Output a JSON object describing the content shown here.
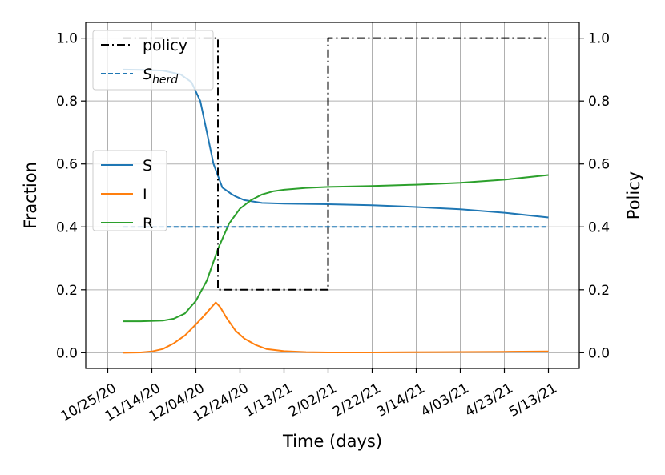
{
  "chart_data": {
    "type": "line",
    "xlabel": "Time (days)",
    "ylabel": "Fraction",
    "y2label": "Policy",
    "ylim": [
      -0.05,
      1.05
    ],
    "y2lim": [
      -0.05,
      1.05
    ],
    "xlim_days": [
      -10,
      214
    ],
    "grid": true,
    "x_ticks": [
      "10/25/20",
      "11/14/20",
      "12/04/20",
      "12/24/20",
      "1/13/21",
      "2/02/21",
      "2/22/21",
      "3/14/21",
      "4/03/21",
      "4/23/21",
      "5/13/21"
    ],
    "y_ticks": [
      "0.0",
      "0.2",
      "0.4",
      "0.6",
      "0.8",
      "1.0"
    ],
    "y2_ticks": [
      "0.0",
      "0.2",
      "0.4",
      "0.6",
      "0.8",
      "1.0"
    ],
    "x_start_date": "10/25/20",
    "legend_top": {
      "placement": "top-left",
      "entries": [
        {
          "label": "policy",
          "style": "dashdot",
          "color": "#000000"
        },
        {
          "label": "S",
          "subscript": "herd",
          "style": "dashed",
          "color": "#1f77b4"
        }
      ]
    },
    "legend_mid": {
      "placement": "center-left",
      "entries": [
        {
          "label": "S",
          "color": "#1f77b4"
        },
        {
          "label": "I",
          "color": "#ff7f0e"
        },
        {
          "label": "R",
          "color": "#2ca02c"
        }
      ]
    },
    "series": [
      {
        "name": "S",
        "color": "#1f77b4",
        "style": "solid",
        "x": [
          7,
          15,
          25,
          33,
          38,
          42,
          45,
          48,
          52,
          56,
          58,
          62,
          70,
          80,
          100,
          120,
          140,
          160,
          180,
          200
        ],
        "y": [
          0.9,
          0.899,
          0.897,
          0.885,
          0.86,
          0.8,
          0.7,
          0.6,
          0.525,
          0.505,
          0.497,
          0.485,
          0.476,
          0.474,
          0.472,
          0.469,
          0.463,
          0.456,
          0.445,
          0.43
        ]
      },
      {
        "name": "I",
        "color": "#ff7f0e",
        "style": "solid",
        "x": [
          7,
          15,
          20,
          25,
          30,
          35,
          40,
          44,
          49,
          51,
          54,
          58,
          62,
          67,
          72,
          80,
          90,
          100,
          120,
          150,
          180,
          200
        ],
        "y": [
          0.0,
          0.001,
          0.004,
          0.012,
          0.03,
          0.055,
          0.09,
          0.12,
          0.16,
          0.145,
          0.11,
          0.07,
          0.045,
          0.025,
          0.012,
          0.005,
          0.002,
          0.001,
          0.001,
          0.002,
          0.003,
          0.004
        ]
      },
      {
        "name": "R",
        "color": "#2ca02c",
        "style": "solid",
        "x": [
          7,
          15,
          25,
          30,
          35,
          40,
          45,
          50,
          55,
          60,
          65,
          70,
          75,
          80,
          90,
          100,
          120,
          140,
          160,
          180,
          200
        ],
        "y": [
          0.1,
          0.1,
          0.102,
          0.108,
          0.125,
          0.165,
          0.23,
          0.33,
          0.41,
          0.458,
          0.485,
          0.503,
          0.513,
          0.518,
          0.524,
          0.527,
          0.53,
          0.534,
          0.54,
          0.55,
          0.565
        ]
      },
      {
        "name": "policy",
        "color": "#000000",
        "style": "dashdot",
        "axis": "right",
        "x": [
          7,
          50,
          50,
          100,
          100,
          200
        ],
        "y": [
          1.0,
          1.0,
          0.2,
          0.2,
          1.0,
          1.0
        ]
      },
      {
        "name": "S_herd",
        "color": "#1f77b4",
        "style": "dashed",
        "x": [
          7,
          200
        ],
        "y": [
          0.4,
          0.4
        ]
      }
    ]
  }
}
